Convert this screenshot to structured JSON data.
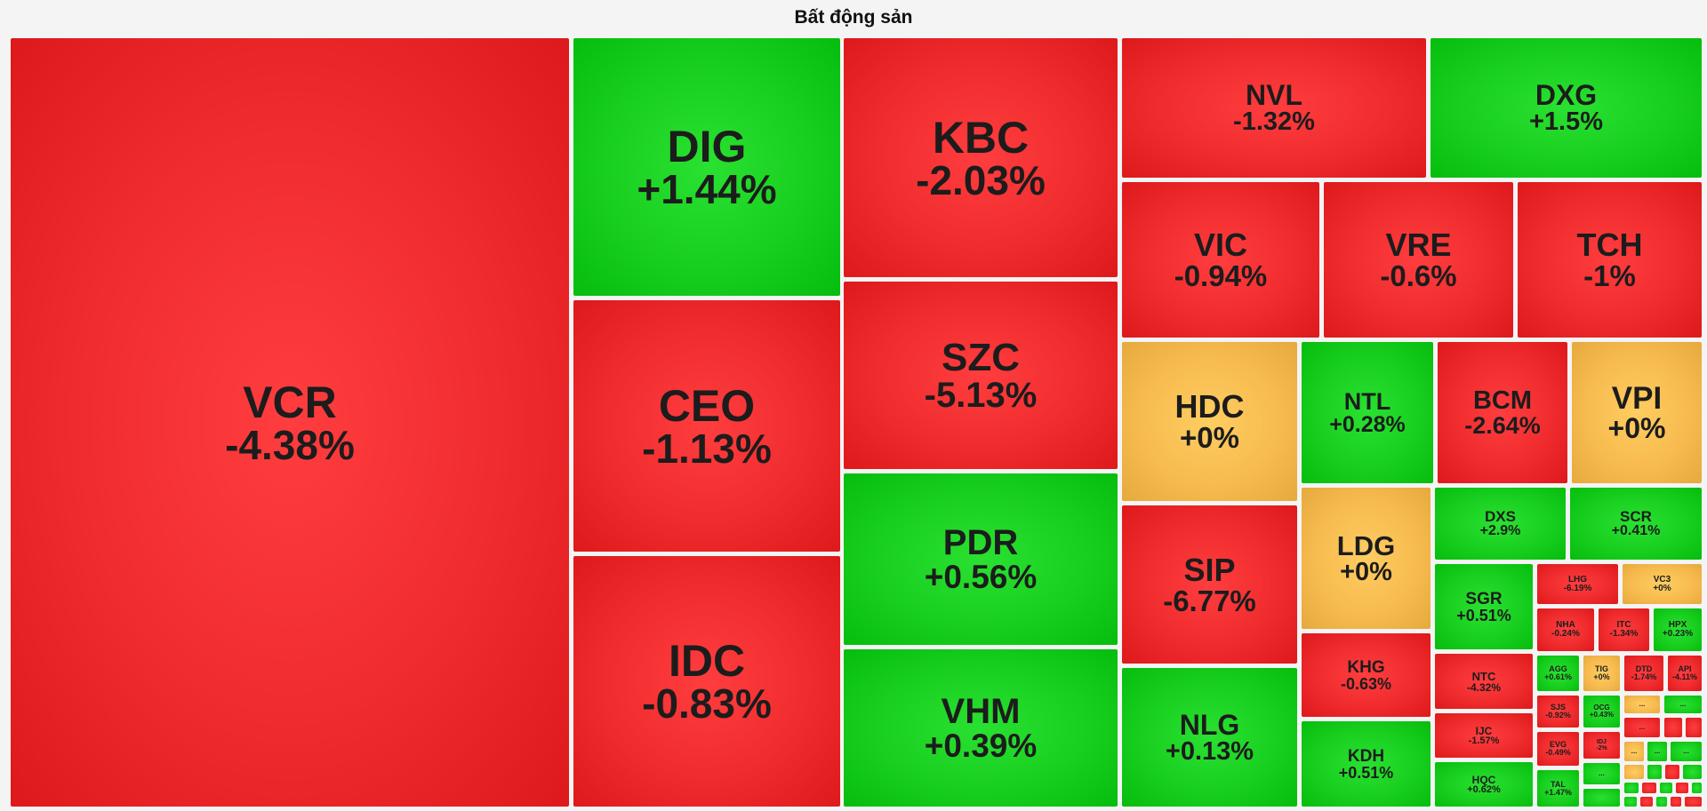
{
  "colors": {
    "down": "#ef2b2d",
    "up": "#18cf1f",
    "flat": "#f7bb4f",
    "background": "#f4f4f4"
  },
  "chart_data": {
    "type": "treemap",
    "title": "Bất động sản",
    "ellipsis": "...",
    "tiles": [
      {
        "symbol": "VCR",
        "change": "-4.38%"
      },
      {
        "symbol": "DIG",
        "change": "+1.44%"
      },
      {
        "symbol": "CEO",
        "change": "-1.13%"
      },
      {
        "symbol": "IDC",
        "change": "-0.83%"
      },
      {
        "symbol": "KBC",
        "change": "-2.03%"
      },
      {
        "symbol": "SZC",
        "change": "-5.13%"
      },
      {
        "symbol": "PDR",
        "change": "+0.56%"
      },
      {
        "symbol": "VHM",
        "change": "+0.39%"
      },
      {
        "symbol": "NVL",
        "change": "-1.32%"
      },
      {
        "symbol": "DXG",
        "change": "+1.5%"
      },
      {
        "symbol": "VIC",
        "change": "-0.94%"
      },
      {
        "symbol": "VRE",
        "change": "-0.6%"
      },
      {
        "symbol": "TCH",
        "change": "-1%"
      },
      {
        "symbol": "HDC",
        "change": "+0%"
      },
      {
        "symbol": "NTL",
        "change": "+0.28%"
      },
      {
        "symbol": "BCM",
        "change": "-2.64%"
      },
      {
        "symbol": "VPI",
        "change": "+0%"
      },
      {
        "symbol": "SIP",
        "change": "-6.77%"
      },
      {
        "symbol": "NLG",
        "change": "+0.13%"
      },
      {
        "symbol": "LDG",
        "change": "+0%"
      },
      {
        "symbol": "KHG",
        "change": "-0.63%"
      },
      {
        "symbol": "KDH",
        "change": "+0.51%"
      },
      {
        "symbol": "DXS",
        "change": "+2.9%"
      },
      {
        "symbol": "SCR",
        "change": "+0.41%"
      },
      {
        "symbol": "SGR",
        "change": "+0.51%"
      },
      {
        "symbol": "NTC",
        "change": "-4.32%"
      },
      {
        "symbol": "IJC",
        "change": "-1.57%"
      },
      {
        "symbol": "HQC",
        "change": "+0.62%"
      },
      {
        "symbol": "LHG",
        "change": "-6.19%"
      },
      {
        "symbol": "VC3",
        "change": "+0%"
      },
      {
        "symbol": "NHA",
        "change": "-0.24%"
      },
      {
        "symbol": "ITC",
        "change": "-1.34%"
      },
      {
        "symbol": "HPX",
        "change": "+0.23%"
      },
      {
        "symbol": "AGG",
        "change": "+0.61%"
      },
      {
        "symbol": "TIG",
        "change": "+0%"
      },
      {
        "symbol": "DTD",
        "change": "-1.74%"
      },
      {
        "symbol": "API",
        "change": "-4.11%"
      },
      {
        "symbol": "SJS",
        "change": "-0.92%"
      },
      {
        "symbol": "OCG",
        "change": "+0.43%"
      },
      {
        "symbol": "EVG",
        "change": "-0.49%"
      },
      {
        "symbol": "IDJ",
        "change": "-2%"
      },
      {
        "symbol": "TAL",
        "change": "+1.47%"
      }
    ]
  }
}
